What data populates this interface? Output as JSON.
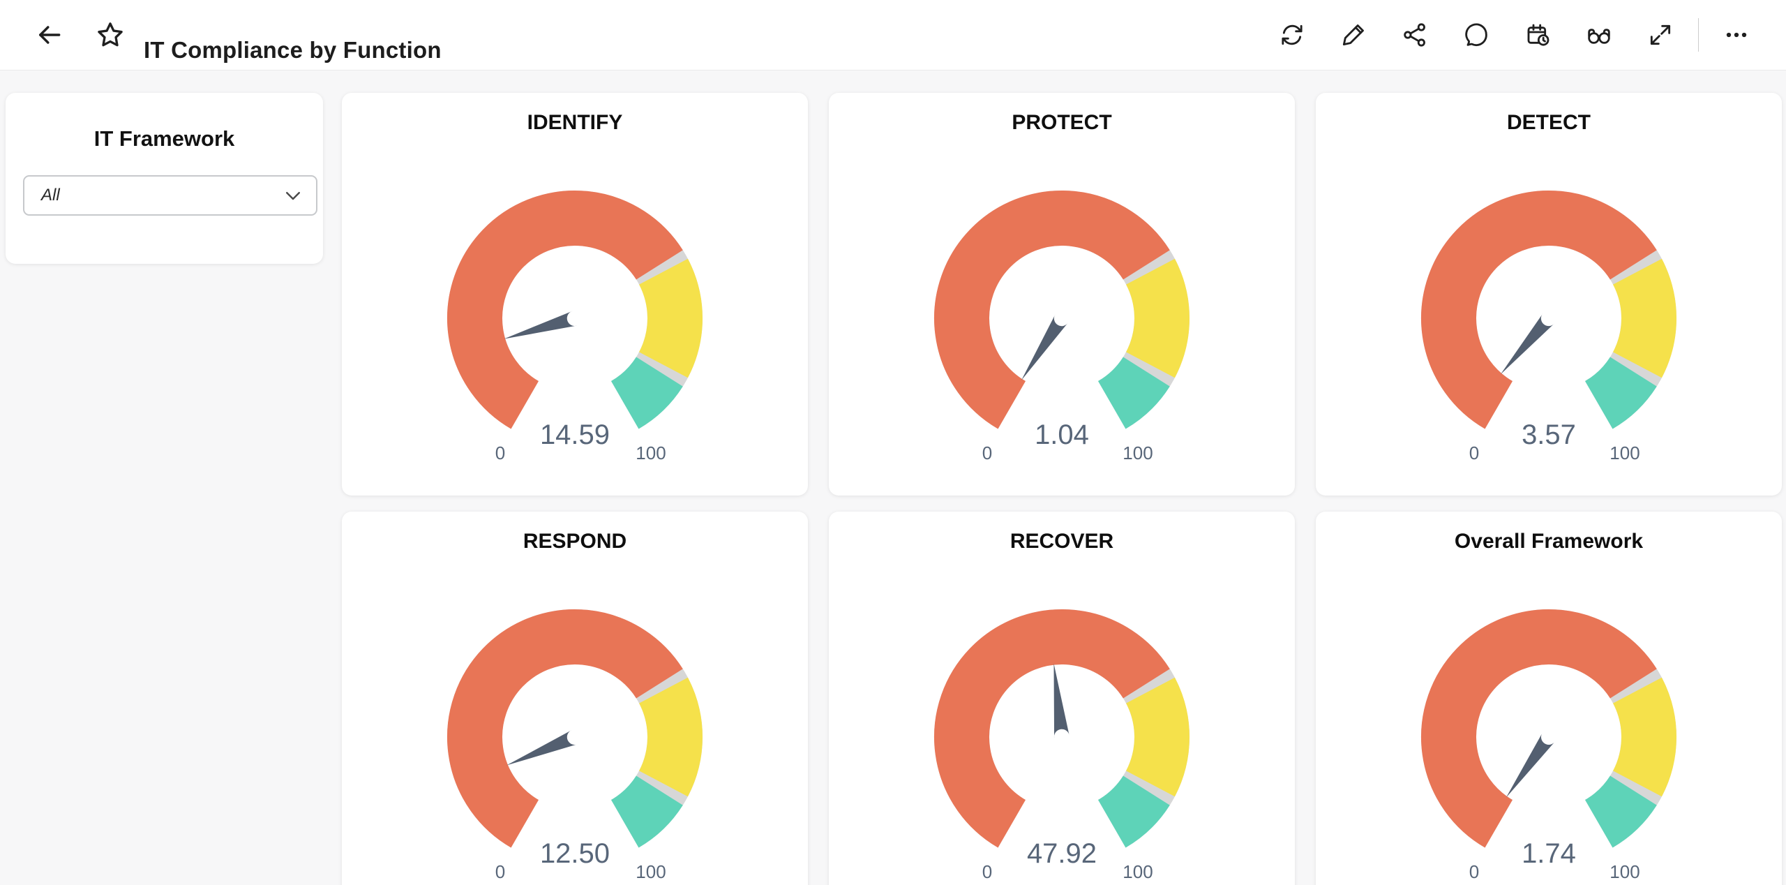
{
  "header": {
    "title": "IT Compliance by Function",
    "toolbar_icons": [
      "refresh",
      "edit",
      "share",
      "comment",
      "schedule",
      "preview",
      "fullscreen",
      "more"
    ]
  },
  "filter_panel": {
    "title": "IT Framework",
    "dropdown_value": "All"
  },
  "colors": {
    "page_bg": "#f7f7f8",
    "card_bg": "#ffffff",
    "band_low": "#e87556",
    "band_mid": "#f5e14b",
    "band_high": "#5ed3b8",
    "band_gap": "#d7d7d7",
    "needle": "#535f70",
    "value_text": "#586679"
  },
  "chart_data": {
    "type": "gauge",
    "min": 0,
    "max": 100,
    "min_label": "0",
    "max_label": "100",
    "start_angle_deg": 210,
    "sweep_deg": 300,
    "band_gap_units": 1.5,
    "bands": [
      {
        "from": 0,
        "to": 70,
        "color": "#e87556"
      },
      {
        "from": 70,
        "to": 90,
        "color": "#f5e14b"
      },
      {
        "from": 90,
        "to": 100,
        "color": "#5ed3b8"
      }
    ],
    "gauges": [
      {
        "title": "IDENTIFY",
        "value": 14.59,
        "display": "14.59"
      },
      {
        "title": "PROTECT",
        "value": 1.04,
        "display": "1.04"
      },
      {
        "title": "DETECT",
        "value": 3.57,
        "display": "3.57"
      },
      {
        "title": "RESPOND",
        "value": 12.5,
        "display": "12.50"
      },
      {
        "title": "RECOVER",
        "value": 47.92,
        "display": "47.92"
      },
      {
        "title": "Overall Framework",
        "value": 1.74,
        "display": "1.74"
      }
    ]
  }
}
